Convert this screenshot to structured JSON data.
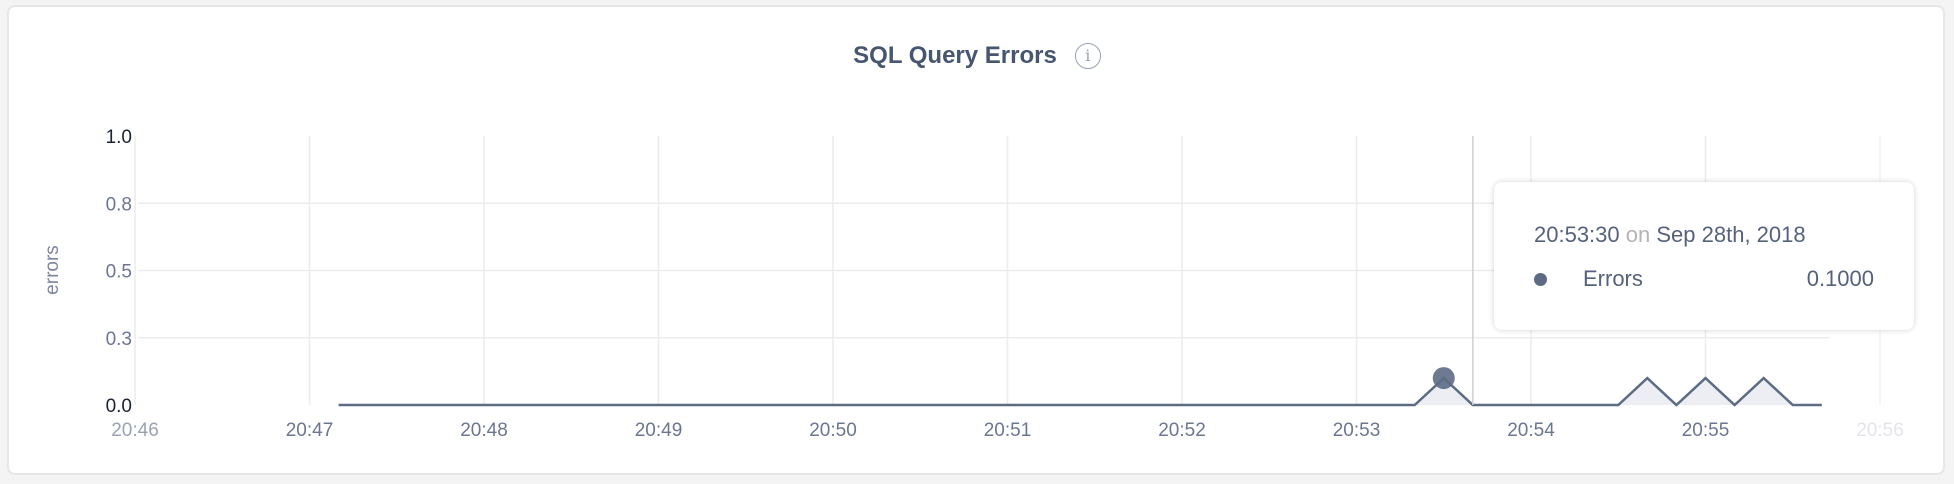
{
  "chart_data": {
    "type": "area",
    "title": "SQL Query Errors",
    "ylabel": "errors",
    "xlabel": "",
    "x_ticks": [
      "20:46",
      "20:47",
      "20:48",
      "20:49",
      "20:50",
      "20:51",
      "20:52",
      "20:53",
      "20:54",
      "20:55",
      "20:56"
    ],
    "y_ticks": [
      {
        "value": 1.0,
        "label": "1.0"
      },
      {
        "value": 0.75,
        "label": "0.8"
      },
      {
        "value": 0.5,
        "label": "0.5"
      },
      {
        "value": 0.25,
        "label": "0.3"
      },
      {
        "value": 0.0,
        "label": "0.0"
      }
    ],
    "ylim": [
      0,
      1
    ],
    "xlim": [
      "20:46:00",
      "20:56:00"
    ],
    "grid": true,
    "series": [
      {
        "name": "Errors",
        "color": "#5d6b85",
        "fill": "#eceef3",
        "interval_seconds": 10,
        "start": "20:47:10",
        "end": "20:55:40",
        "nonzero_points": [
          {
            "x": "20:53:30",
            "y": 0.1
          },
          {
            "x": "20:54:40",
            "y": 0.1
          },
          {
            "x": "20:55:00",
            "y": 0.1
          },
          {
            "x": "20:55:20",
            "y": 0.1
          }
        ]
      }
    ],
    "hover_line_at": "20:53:40",
    "highlighted_point": {
      "x": "20:53:30",
      "y": 0.1
    }
  },
  "tooltip": {
    "time": "20:53:30",
    "on": "on",
    "date": "Sep 28th, 2018",
    "series_label": "Errors",
    "value": "0.1000"
  },
  "info_icon": "info-icon"
}
